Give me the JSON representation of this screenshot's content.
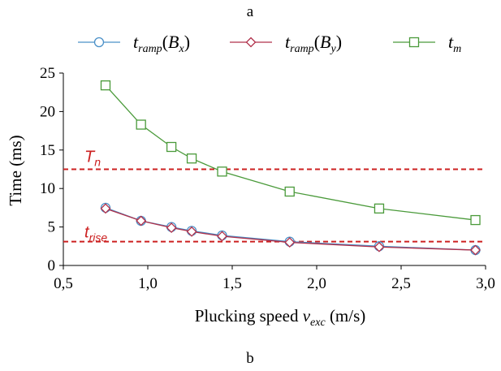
{
  "panel_label_top": "a",
  "panel_label_bottom": "b",
  "colors": {
    "series_bx": "#4a90c8",
    "series_by": "#b0304a",
    "series_tm": "#4a9a3a",
    "threshold": "#cc2020",
    "axis": "#000000"
  },
  "chart_data": {
    "type": "line",
    "xlabel": "Plucking speed v_exc (m/s)",
    "ylabel": "Time (ms)",
    "xlim": [
      0.5,
      3.0
    ],
    "ylim": [
      0,
      25
    ],
    "xticks": [
      "0,5",
      "1,0",
      "1,5",
      "2,0",
      "2,5",
      "3,0"
    ],
    "yticks": [
      "0",
      "5",
      "10",
      "15",
      "20",
      "25"
    ],
    "grid": false,
    "legend": "top",
    "x": [
      0.75,
      0.96,
      1.14,
      1.26,
      1.44,
      1.84,
      2.37,
      2.94
    ],
    "series": [
      {
        "name": "t_ramp(B_x)",
        "marker": "circle",
        "values": [
          7.5,
          5.8,
          5.0,
          4.5,
          3.9,
          3.1,
          2.5,
          2.0
        ]
      },
      {
        "name": "t_ramp(B_y)",
        "marker": "diamond",
        "values": [
          7.4,
          5.8,
          4.9,
          4.4,
          3.8,
          3.0,
          2.4,
          2.0
        ]
      },
      {
        "name": "t_m",
        "marker": "square",
        "values": [
          23.4,
          18.3,
          15.4,
          13.9,
          12.2,
          9.6,
          7.4,
          5.9
        ]
      }
    ],
    "reference_lines": [
      {
        "label": "T_n",
        "value": 12.5
      },
      {
        "label": "t_rise",
        "value": 3.1
      }
    ]
  }
}
